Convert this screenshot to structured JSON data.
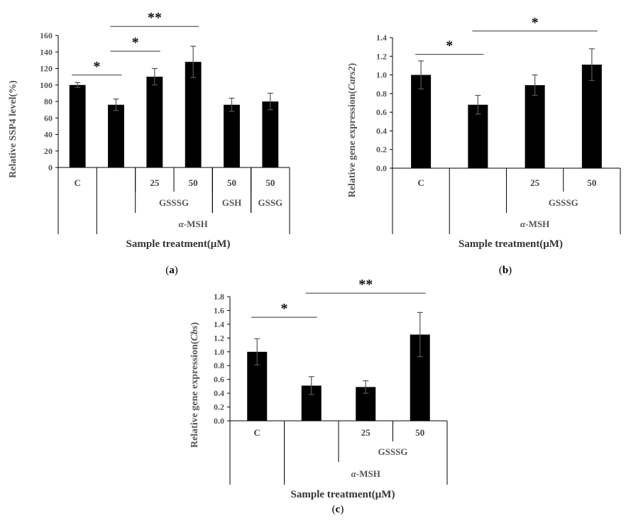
{
  "colors": {
    "bar": "#000000",
    "axis": "#000000",
    "errorbar": "#555555",
    "sigline": "#333333"
  },
  "chart_data": [
    {
      "panel": "a",
      "panel_label": "(a)",
      "type": "bar",
      "ylabel": "Relative SSP4 level(%)",
      "ylim": [
        0,
        160
      ],
      "yticks": [
        "0",
        "20",
        "40",
        "60",
        "80",
        "100",
        "120",
        "140",
        "160"
      ],
      "categories": [
        "C",
        "",
        "25",
        "50",
        "50",
        "50"
      ],
      "values": [
        100,
        76,
        110,
        128,
        76,
        80
      ],
      "errors": [
        3,
        7,
        10,
        19,
        8,
        10
      ],
      "group_labels": [
        {
          "text": "GSSSG",
          "from": 2,
          "to": 3
        },
        {
          "text": "GSH",
          "from": 4,
          "to": 4
        },
        {
          "text": "GSSG",
          "from": 5,
          "to": 5
        }
      ],
      "outer_label": {
        "text": "α-MSH",
        "from": 1,
        "to": 5
      },
      "xlabel": "Sample treatment(μM)",
      "significance": [
        {
          "from": 0,
          "to": 1,
          "level": 112,
          "label": "*"
        },
        {
          "from": 1,
          "to": 2,
          "level": 141,
          "label": "*"
        },
        {
          "from": 1,
          "to": 3,
          "level": 171,
          "label": "**"
        }
      ]
    },
    {
      "panel": "b",
      "panel_label": "(b)",
      "type": "bar",
      "ylabel": "Relative gene expression(Cars2)",
      "ylim": [
        0,
        1.4
      ],
      "yticks": [
        "0.0",
        "0.2",
        "0.4",
        "0.6",
        "0.8",
        "1.0",
        "1.2",
        "1.4"
      ],
      "categories": [
        "C",
        "",
        "25",
        "50"
      ],
      "values": [
        1.0,
        0.68,
        0.89,
        1.11
      ],
      "errors": [
        0.15,
        0.1,
        0.11,
        0.17
      ],
      "group_labels": [
        {
          "text": "GSSSG",
          "from": 2,
          "to": 3
        }
      ],
      "outer_label": {
        "text": "α-MSH",
        "from": 1,
        "to": 3
      },
      "xlabel": "Sample treatment(μM)",
      "significance": [
        {
          "from": 0,
          "to": 1,
          "level": 1.22,
          "label": "*"
        },
        {
          "from": 1,
          "to": 3,
          "level": 1.47,
          "label": "*"
        }
      ]
    },
    {
      "panel": "c",
      "panel_label": "(c)",
      "type": "bar",
      "ylabel": "Relative gene expression(Cbs)",
      "ylim": [
        0,
        1.8
      ],
      "yticks": [
        "0.0",
        "0.2",
        "0.4",
        "0.6",
        "0.8",
        "1.0",
        "1.2",
        "1.4",
        "1.6",
        "1.8"
      ],
      "categories": [
        "C",
        "",
        "25",
        "50"
      ],
      "values": [
        1.0,
        0.51,
        0.49,
        1.25
      ],
      "errors": [
        0.19,
        0.13,
        0.09,
        0.32
      ],
      "group_labels": [
        {
          "text": "GSSSG",
          "from": 2,
          "to": 3
        }
      ],
      "outer_label": {
        "text": "α-MSH",
        "from": 1,
        "to": 3
      },
      "xlabel": "Sample treatment(μM)",
      "significance": [
        {
          "from": 0,
          "to": 1,
          "level": 1.5,
          "label": "*"
        },
        {
          "from": 1,
          "to": 3,
          "level": 1.85,
          "label": "**"
        }
      ]
    }
  ]
}
